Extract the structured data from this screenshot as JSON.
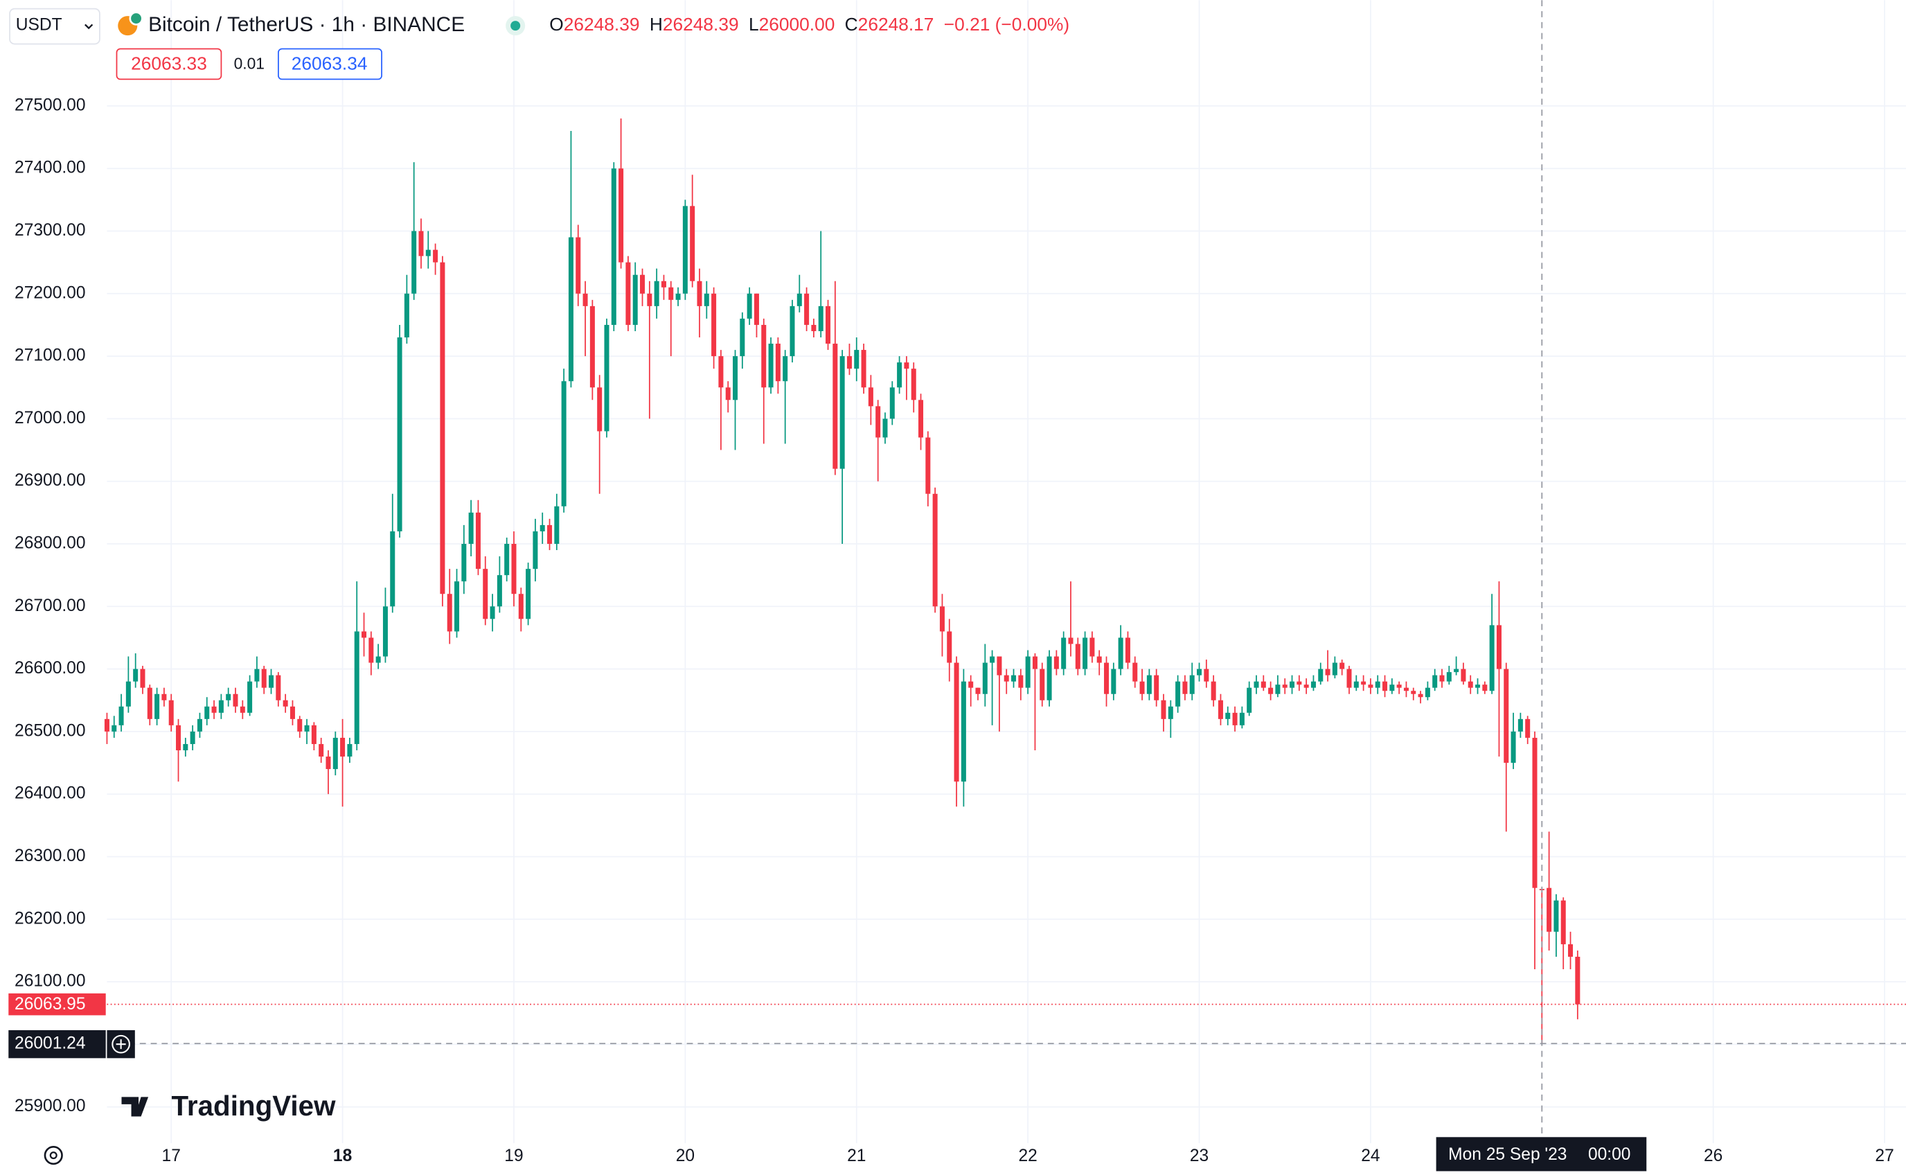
{
  "toolbar": {
    "currency": "USDT",
    "bid": "26063.33",
    "spread": "0.01",
    "ask": "26063.34",
    "brand": "TradingView"
  },
  "legend": [
    {
      "label": "O",
      "value": "26248.39"
    },
    {
      "label": "H",
      "value": "26248.39"
    },
    {
      "label": "L",
      "value": "26000.00"
    },
    {
      "label": "C",
      "value": "26248.17"
    }
  ],
  "change": "−0.21 (−0.00%)",
  "chart_data": {
    "type": "candlestick",
    "title": "Bitcoin / TetherUS · 1h · BINANCE",
    "up_color": "#089981",
    "down_color": "#f23645",
    "grid": true,
    "open": [
      26520,
      26500,
      26510,
      26540,
      26580,
      26600,
      26570,
      26520,
      26560,
      26550,
      26510,
      26470,
      26480,
      26500,
      26520,
      26540,
      26530,
      26550,
      26560,
      26540,
      26530,
      26580,
      26600,
      26570,
      26590,
      26550,
      26540,
      26520,
      26500,
      26510,
      26480,
      26460,
      26440,
      26490,
      26460,
      26480,
      26660,
      26650,
      26610,
      26620,
      26700,
      26820,
      27130,
      27200,
      27300,
      27260,
      27270,
      27250,
      26720,
      26660,
      26740,
      26800,
      26850,
      26760,
      26680,
      26700,
      26750,
      26800,
      26720,
      26680,
      26760,
      26820,
      26830,
      26800,
      26860,
      27060,
      27290,
      27200,
      27180,
      27050,
      26980,
      27150,
      27400,
      27250,
      27150,
      27230,
      27200,
      27180,
      27220,
      27210,
      27190,
      27200,
      27340,
      27220,
      27180,
      27200,
      27100,
      27050,
      27030,
      27100,
      27160,
      27200,
      27150,
      27050,
      27120,
      27060,
      27100,
      27180,
      27200,
      27150,
      27140,
      27180,
      27120,
      26920,
      27100,
      27080,
      27110,
      27050,
      27020,
      26970,
      27000,
      27050,
      27090,
      27080,
      27030,
      26970,
      26880,
      26700,
      26660,
      26610,
      26420,
      26580,
      26570,
      26560,
      26610,
      26620,
      26590,
      26580,
      26590,
      26570,
      26620,
      26600,
      26550,
      26620,
      26600,
      26650,
      26640,
      26600,
      26650,
      26620,
      26610,
      26560,
      26600,
      26650,
      26610,
      26580,
      26560,
      26590,
      26550,
      26520,
      26540,
      26580,
      26560,
      26590,
      26600,
      26580,
      26550,
      26520,
      26530,
      26510,
      26530,
      26570,
      26580,
      26570,
      26560,
      26575,
      26570,
      26580,
      26575,
      26570,
      26580,
      26600,
      26590,
      26610,
      26600,
      26570,
      26580,
      26575,
      26570,
      26580,
      26565,
      26575,
      26570,
      26565,
      26560,
      26555,
      26570,
      26590,
      26580,
      26595,
      26600,
      26580,
      26570,
      26575,
      26565,
      26670,
      26600,
      26450,
      26500,
      26520,
      26490,
      26248.39,
      26250,
      26180,
      26230,
      26160,
      26140
    ],
    "high": [
      26530,
      26525,
      26560,
      26620,
      26625,
      26605,
      26575,
      26570,
      26570,
      26560,
      26520,
      26490,
      26510,
      26530,
      26555,
      26550,
      26560,
      26570,
      26570,
      26550,
      26590,
      26620,
      26605,
      26600,
      26595,
      26560,
      26550,
      26525,
      26520,
      26515,
      26490,
      26470,
      26500,
      26520,
      26490,
      26740,
      26690,
      26660,
      26640,
      26730,
      26880,
      27150,
      27230,
      27410,
      27320,
      27300,
      27280,
      27260,
      26760,
      26760,
      26830,
      26870,
      26870,
      26780,
      26720,
      26780,
      26810,
      26820,
      26730,
      26770,
      26840,
      26850,
      26840,
      26880,
      27080,
      27460,
      27310,
      27220,
      27190,
      27070,
      27160,
      27410,
      27480,
      27260,
      27250,
      27240,
      27220,
      27240,
      27230,
      27220,
      27210,
      27350,
      27390,
      27240,
      27220,
      27210,
      27110,
      27060,
      27110,
      27170,
      27210,
      27200,
      27160,
      27130,
      27130,
      27110,
      27190,
      27230,
      27210,
      27160,
      27300,
      27190,
      27220,
      27110,
      27120,
      27130,
      27120,
      27070,
      27030,
      27010,
      27060,
      27100,
      27100,
      27090,
      27040,
      26980,
      26890,
      26720,
      26680,
      26620,
      26600,
      26590,
      26570,
      26640,
      26630,
      26610,
      26600,
      26600,
      26600,
      26630,
      26625,
      26610,
      26630,
      26630,
      26660,
      26740,
      26650,
      26660,
      26660,
      26630,
      26620,
      26610,
      26670,
      26660,
      26620,
      26600,
      26600,
      26600,
      26560,
      26550,
      26590,
      26590,
      26610,
      26610,
      26615,
      26590,
      26560,
      26540,
      26540,
      26540,
      26580,
      26590,
      26590,
      26580,
      26590,
      26585,
      26590,
      26590,
      26585,
      26590,
      26610,
      26630,
      26620,
      26615,
      26605,
      26590,
      26590,
      26585,
      26590,
      26590,
      26585,
      26580,
      26580,
      26570,
      26565,
      26580,
      26600,
      26600,
      26605,
      26620,
      26610,
      26590,
      26585,
      26580,
      26720,
      26740,
      26610,
      26530,
      26530,
      26525,
      26500,
      26248.39,
      26340,
      26240,
      26235,
      26180,
      26150
    ],
    "low": [
      26480,
      26490,
      26500,
      26530,
      26570,
      26560,
      26510,
      26510,
      26540,
      26500,
      26420,
      26460,
      26470,
      26490,
      26510,
      26520,
      26520,
      26540,
      26530,
      26520,
      26525,
      26570,
      26560,
      26560,
      26540,
      26530,
      26510,
      26490,
      26480,
      26470,
      26450,
      26400,
      26430,
      26380,
      26450,
      26470,
      26620,
      26590,
      26600,
      26610,
      26690,
      26810,
      27120,
      27190,
      27240,
      27240,
      27230,
      26700,
      26640,
      26650,
      26720,
      26780,
      26750,
      26670,
      26660,
      26690,
      26740,
      26700,
      26660,
      26670,
      26740,
      26800,
      26790,
      26790,
      26850,
      27050,
      27180,
      27100,
      27030,
      26880,
      26970,
      27140,
      27240,
      27140,
      27140,
      27180,
      27000,
      27160,
      27190,
      27100,
      27180,
      27190,
      27210,
      27130,
      27160,
      27080,
      26950,
      27010,
      26950,
      27080,
      27150,
      27130,
      26960,
      27040,
      27040,
      26960,
      27090,
      27170,
      27140,
      27130,
      27130,
      27110,
      26910,
      26800,
      27070,
      27060,
      27040,
      26990,
      26900,
      26960,
      26990,
      27040,
      27030,
      27010,
      26950,
      26860,
      26690,
      26620,
      26580,
      26380,
      26380,
      26540,
      26550,
      26540,
      26510,
      26500,
      26560,
      26570,
      26550,
      26560,
      26470,
      26540,
      26540,
      26590,
      26590,
      26620,
      26590,
      26590,
      26610,
      26590,
      26540,
      26550,
      26590,
      26600,
      26570,
      26550,
      26550,
      26540,
      26500,
      26490,
      26530,
      26550,
      26550,
      26580,
      26570,
      26540,
      26510,
      26510,
      26500,
      26505,
      26525,
      26560,
      26565,
      26550,
      26555,
      26560,
      26560,
      26565,
      26560,
      26565,
      26575,
      26580,
      26585,
      26590,
      26560,
      26565,
      26565,
      26560,
      26560,
      26555,
      26560,
      26560,
      26555,
      26550,
      26545,
      26550,
      26565,
      26570,
      26575,
      26590,
      26575,
      26560,
      26560,
      26560,
      26560,
      26460,
      26340,
      26440,
      26490,
      26480,
      26120,
      26000,
      26150,
      26140,
      26120,
      26120,
      26040
    ],
    "close": [
      26500,
      26510,
      26540,
      26580,
      26600,
      26570,
      26520,
      26560,
      26550,
      26510,
      26470,
      26480,
      26500,
      26520,
      26540,
      26530,
      26550,
      26560,
      26540,
      26530,
      26580,
      26600,
      26570,
      26590,
      26550,
      26540,
      26520,
      26500,
      26510,
      26480,
      26460,
      26440,
      26490,
      26460,
      26480,
      26660,
      26650,
      26610,
      26620,
      26700,
      26820,
      27130,
      27200,
      27300,
      27260,
      27270,
      27250,
      26720,
      26660,
      26740,
      26800,
      26850,
      26760,
      26680,
      26700,
      26750,
      26800,
      26720,
      26680,
      26760,
      26820,
      26830,
      26800,
      26860,
      27060,
      27290,
      27200,
      27180,
      27050,
      26980,
      27150,
      27400,
      27250,
      27150,
      27230,
      27200,
      27180,
      27220,
      27210,
      27190,
      27200,
      27340,
      27220,
      27180,
      27200,
      27100,
      27050,
      27030,
      27100,
      27160,
      27200,
      27150,
      27050,
      27120,
      27060,
      27100,
      27180,
      27200,
      27150,
      27140,
      27180,
      27120,
      26920,
      27100,
      27080,
      27110,
      27050,
      27020,
      26970,
      27000,
      27050,
      27090,
      27080,
      27030,
      26970,
      26880,
      26700,
      26660,
      26610,
      26420,
      26580,
      26570,
      26560,
      26610,
      26620,
      26590,
      26580,
      26590,
      26570,
      26620,
      26600,
      26550,
      26620,
      26600,
      26650,
      26640,
      26600,
      26650,
      26620,
      26610,
      26560,
      26600,
      26650,
      26610,
      26580,
      26560,
      26590,
      26550,
      26520,
      26540,
      26580,
      26560,
      26590,
      26600,
      26580,
      26550,
      26520,
      26530,
      26510,
      26530,
      26570,
      26580,
      26570,
      26560,
      26575,
      26570,
      26580,
      26575,
      26570,
      26580,
      26600,
      26590,
      26610,
      26600,
      26570,
      26580,
      26575,
      26570,
      26580,
      26565,
      26575,
      26570,
      26565,
      26560,
      26555,
      26570,
      26590,
      26580,
      26595,
      26600,
      26580,
      26570,
      26575,
      26565,
      26670,
      26600,
      26450,
      26500,
      26520,
      26490,
      26250,
      26248.17,
      26180,
      26230,
      26160,
      26140,
      26063.95
    ],
    "ylim": [
      25842,
      27669
    ],
    "yticks": [
      {
        "value": 25900,
        "label": "25900.00"
      },
      {
        "value": 26000,
        "label": "26000.00"
      },
      {
        "value": 26100,
        "label": "26100.00"
      },
      {
        "value": 26200,
        "label": "26200.00"
      },
      {
        "value": 26300,
        "label": "26300.00"
      },
      {
        "value": 26400,
        "label": "26400.00"
      },
      {
        "value": 26500,
        "label": "26500.00"
      },
      {
        "value": 26600,
        "label": "26600.00"
      },
      {
        "value": 26700,
        "label": "26700.00"
      },
      {
        "value": 26800,
        "label": "26800.00"
      },
      {
        "value": 26900,
        "label": "26900.00"
      },
      {
        "value": 27000,
        "label": "27000.00"
      },
      {
        "value": 27100,
        "label": "27100.00"
      },
      {
        "value": 27200,
        "label": "27200.00"
      },
      {
        "value": 27300,
        "label": "27300.00"
      },
      {
        "value": 27400,
        "label": "27400.00"
      },
      {
        "value": 27500,
        "label": "27500.00"
      }
    ],
    "xlim": [
      0,
      252
    ],
    "xticks": [
      {
        "value": 9,
        "label": "17"
      },
      {
        "value": 33,
        "label": "18"
      },
      {
        "value": 57,
        "label": "19"
      },
      {
        "value": 81,
        "label": "20"
      },
      {
        "value": 105,
        "label": "21"
      },
      {
        "value": 129,
        "label": "22"
      },
      {
        "value": 153,
        "label": "23"
      },
      {
        "value": 177,
        "label": "24"
      },
      {
        "value": 225,
        "label": "26"
      },
      {
        "value": 249,
        "label": "27"
      }
    ],
    "crosshair": {
      "price": 26001.24,
      "date": "Mon 25 Sep '23",
      "time": "00:00"
    }
  }
}
